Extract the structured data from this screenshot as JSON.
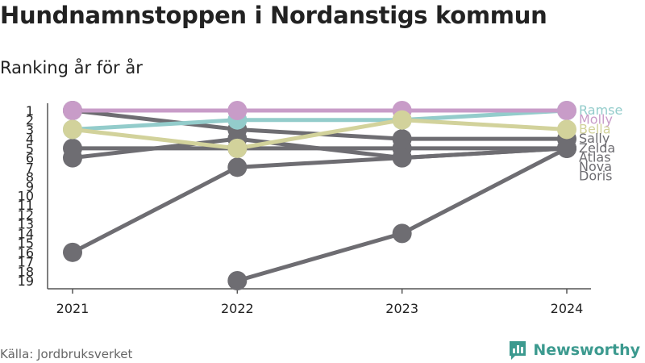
{
  "header": {
    "title": "Hundnamnstoppen i Nordanstigs kommun",
    "subtitle": "Ranking år för år"
  },
  "footer": {
    "source": "Källa: Jordbruksverket",
    "brand": "Newsworthy"
  },
  "colors": {
    "highlight_pink": "#c89cc8",
    "highlight_teal": "#93cccb",
    "highlight_olive": "#d2d29b",
    "neutral": "#6e6d72",
    "brand": "#3c9a8f",
    "axis": "#555555"
  },
  "chart_data": {
    "type": "line",
    "variant": "bump",
    "title": "Hundnamnstoppen i Nordanstigs kommun",
    "subtitle": "Ranking år för år",
    "x": [
      "2021",
      "2022",
      "2023",
      "2024"
    ],
    "y_tick_labels": [
      "1",
      "2",
      "3",
      "4",
      "5",
      "6",
      "7",
      "8",
      "9",
      "10",
      "11",
      "12",
      "13",
      "14",
      "15",
      "16",
      "17",
      "18",
      "19"
    ],
    "ylim": [
      1,
      19
    ],
    "y_inverted": true,
    "grid": false,
    "legend": "right-end labels",
    "series": [
      {
        "name": "Ramse",
        "values": [
          3,
          2,
          2,
          1
        ],
        "color": "#93cccb",
        "highlight": true
      },
      {
        "name": "Molly",
        "values": [
          1,
          1,
          1,
          1
        ],
        "color": "#c89cc8",
        "highlight": true
      },
      {
        "name": "Bella",
        "values": [
          3,
          5,
          2,
          3
        ],
        "color": "#d2d29b",
        "highlight": true
      },
      {
        "name": "Sally",
        "values": [
          1,
          3,
          4,
          4
        ],
        "color": "#6e6d72",
        "highlight": false
      },
      {
        "name": "Zelda",
        "values": [
          5,
          5,
          5,
          5
        ],
        "color": "#6e6d72",
        "highlight": false
      },
      {
        "name": "Atlas",
        "values": [
          6,
          4,
          6,
          5
        ],
        "color": "#6e6d72",
        "highlight": false
      },
      {
        "name": "Nova",
        "values": [
          16,
          7,
          6,
          5
        ],
        "color": "#6e6d72",
        "highlight": false
      },
      {
        "name": "Doris",
        "values": [
          null,
          19,
          14,
          5
        ],
        "color": "#6e6d72",
        "highlight": false
      }
    ]
  }
}
